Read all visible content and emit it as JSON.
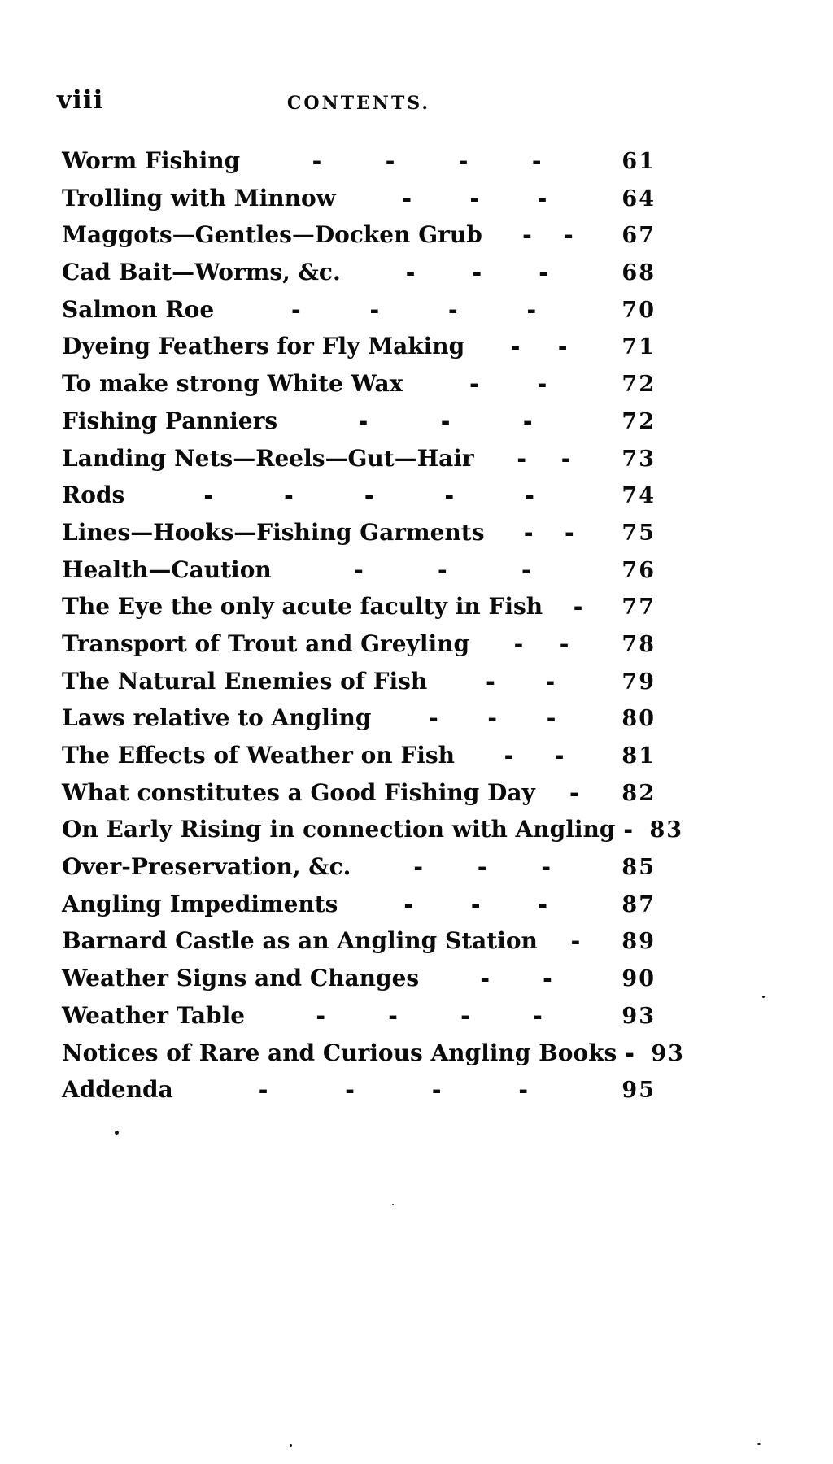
{
  "page": {
    "folio": "viii",
    "header": "CONTENTS.",
    "entries": [
      {
        "title": "Worm Fishing",
        "dashes": 4,
        "page": "61"
      },
      {
        "title": "Trolling with Minnow",
        "dashes": 3,
        "page": "64"
      },
      {
        "title": "Maggots—Gentles—Docken Grub",
        "dashes": 2,
        "page": "67"
      },
      {
        "title": "Cad Bait—Worms, &c.",
        "dashes": 3,
        "page": "68"
      },
      {
        "title": "Salmon Roe",
        "dashes": 4,
        "page": "70"
      },
      {
        "title": "Dyeing Feathers for Fly Making",
        "dashes": 2,
        "page": "71"
      },
      {
        "title": "To make strong White Wax",
        "dashes": 2,
        "page": "72"
      },
      {
        "title": "Fishing Panniers",
        "dashes": 3,
        "page": "72"
      },
      {
        "title": "Landing Nets—Reels—Gut—Hair",
        "dashes": 2,
        "page": "73"
      },
      {
        "title": "Rods",
        "dashes": 5,
        "page": "74"
      },
      {
        "title": "Lines—Hooks—Fishing Garments",
        "dashes": 2,
        "page": "75"
      },
      {
        "title": "Health—Caution",
        "dashes": 3,
        "page": "76"
      },
      {
        "title": "The Eye the only acute faculty in Fish",
        "dashes": 1,
        "page": "77"
      },
      {
        "title": "Transport of Trout and Greyling",
        "dashes": 2,
        "page": "78"
      },
      {
        "title": "The Natural Enemies of Fish",
        "dashes": 2,
        "page": "79"
      },
      {
        "title": "Laws relative to Angling",
        "dashes": 3,
        "page": "80"
      },
      {
        "title": "The Effects of Weather on Fish",
        "dashes": 2,
        "page": "81"
      },
      {
        "title": "What constitutes a Good Fishing Day",
        "dashes": 1,
        "page": "82"
      },
      {
        "title": "On Early Rising in connection with Angling",
        "dashes": 1,
        "page": "83"
      },
      {
        "title": "Over-Preservation, &c.",
        "dashes": 3,
        "page": "85"
      },
      {
        "title": "Angling Impediments",
        "dashes": 3,
        "page": "87"
      },
      {
        "title": "Barnard Castle as an Angling Station",
        "dashes": 1,
        "page": "89"
      },
      {
        "title": "Weather Signs and Changes",
        "dashes": 2,
        "page": "90"
      },
      {
        "title": "Weather Table",
        "dashes": 4,
        "page": "93"
      },
      {
        "title": "Notices of Rare and Curious Angling Books",
        "dashes": 1,
        "page": "93"
      },
      {
        "title": "Addenda",
        "dashes": 4,
        "page": "95"
      }
    ],
    "dash_glyph": "-"
  }
}
